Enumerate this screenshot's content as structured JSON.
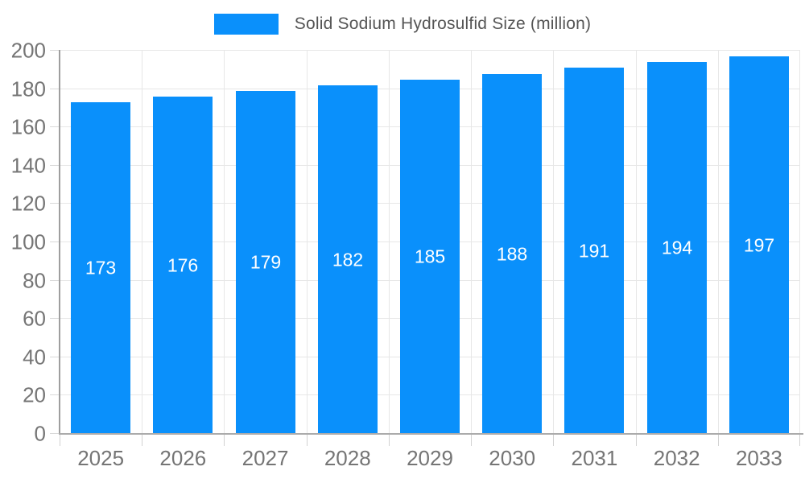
{
  "chart_data": {
    "type": "bar",
    "title": "Solid Sodium Hydrosulfid Size (million)",
    "categories": [
      "2025",
      "2026",
      "2027",
      "2028",
      "2029",
      "2030",
      "2031",
      "2032",
      "2033"
    ],
    "values": [
      173,
      176,
      179,
      182,
      185,
      188,
      191,
      194,
      197
    ],
    "series": [
      {
        "name": "Solid Sodium Hydrosulfid Size (million)",
        "values": [
          173,
          176,
          179,
          182,
          185,
          188,
          191,
          194,
          197
        ]
      }
    ],
    "xlabel": "",
    "ylabel": "",
    "ylim": [
      0,
      200
    ],
    "yticks": [
      0,
      20,
      40,
      60,
      80,
      100,
      120,
      140,
      160,
      180,
      200
    ],
    "grid": true,
    "legend_position": "top",
    "bar_color": "#0a90fb",
    "data_label_color": "#ffffff",
    "axis_label_color": "#757575",
    "legend_text_color": "#555555",
    "gridline_color": "#e7e7e7"
  }
}
